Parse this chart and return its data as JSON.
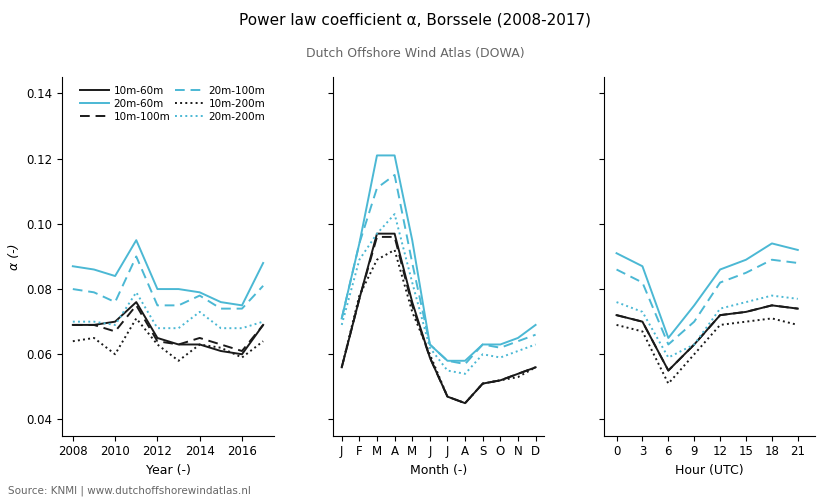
{
  "title": "Power law coefficient α, Borssele (2008-2017)",
  "subtitle": "Dutch Offshore Wind Atlas (DOWA)",
  "ylabel": "α (-)",
  "source": "Source: KNMI | www.dutchoffshorewindatlas.nl",
  "years": [
    2008,
    2009,
    2010,
    2011,
    2012,
    2013,
    2014,
    2015,
    2016,
    2017
  ],
  "year_10m60m": [
    0.069,
    0.069,
    0.07,
    0.076,
    0.065,
    0.063,
    0.063,
    0.061,
    0.06,
    0.069
  ],
  "year_10m100m": [
    0.069,
    0.069,
    0.067,
    0.075,
    0.064,
    0.063,
    0.065,
    0.063,
    0.061,
    0.069
  ],
  "year_10m200m": [
    0.064,
    0.065,
    0.06,
    0.071,
    0.063,
    0.058,
    0.063,
    0.062,
    0.059,
    0.064
  ],
  "year_20m60m": [
    0.087,
    0.086,
    0.084,
    0.095,
    0.08,
    0.08,
    0.079,
    0.076,
    0.075,
    0.088
  ],
  "year_20m100m": [
    0.08,
    0.079,
    0.076,
    0.09,
    0.075,
    0.075,
    0.078,
    0.074,
    0.074,
    0.081
  ],
  "year_20m200m": [
    0.07,
    0.07,
    0.069,
    0.079,
    0.068,
    0.068,
    0.073,
    0.068,
    0.068,
    0.07
  ],
  "month_labels": [
    "J",
    "F",
    "M",
    "A",
    "M",
    "J",
    "J",
    "A",
    "S",
    "O",
    "N",
    "D"
  ],
  "month_10m60m": [
    0.056,
    0.077,
    0.097,
    0.097,
    0.076,
    0.059,
    0.047,
    0.045,
    0.051,
    0.052,
    0.054,
    0.056
  ],
  "month_10m100m": [
    0.056,
    0.077,
    0.096,
    0.096,
    0.075,
    0.059,
    0.047,
    0.045,
    0.051,
    0.052,
    0.054,
    0.056
  ],
  "month_10m200m": [
    0.056,
    0.078,
    0.089,
    0.092,
    0.073,
    0.06,
    0.047,
    0.045,
    0.051,
    0.052,
    0.053,
    0.056
  ],
  "month_20m60m": [
    0.071,
    0.094,
    0.121,
    0.121,
    0.095,
    0.063,
    0.058,
    0.058,
    0.063,
    0.063,
    0.065,
    0.069
  ],
  "month_20m100m": [
    0.071,
    0.094,
    0.111,
    0.115,
    0.088,
    0.063,
    0.058,
    0.057,
    0.063,
    0.062,
    0.064,
    0.066
  ],
  "month_20m200m": [
    0.069,
    0.089,
    0.097,
    0.103,
    0.082,
    0.062,
    0.055,
    0.054,
    0.06,
    0.059,
    0.061,
    0.063
  ],
  "hours": [
    0,
    3,
    6,
    9,
    12,
    15,
    18,
    21
  ],
  "hour_10m60m": [
    0.072,
    0.07,
    0.055,
    0.063,
    0.072,
    0.073,
    0.075,
    0.074
  ],
  "hour_10m100m": [
    0.072,
    0.07,
    0.055,
    0.063,
    0.072,
    0.073,
    0.075,
    0.074
  ],
  "hour_10m200m": [
    0.069,
    0.067,
    0.051,
    0.06,
    0.069,
    0.07,
    0.071,
    0.069
  ],
  "hour_20m60m": [
    0.091,
    0.087,
    0.065,
    0.075,
    0.086,
    0.089,
    0.094,
    0.092
  ],
  "hour_20m100m": [
    0.086,
    0.082,
    0.063,
    0.07,
    0.082,
    0.085,
    0.089,
    0.088
  ],
  "hour_20m200m": [
    0.076,
    0.073,
    0.059,
    0.063,
    0.074,
    0.076,
    0.078,
    0.077
  ],
  "color_black": "#1a1a1a",
  "color_cyan": "#4bb8d4",
  "ylim": [
    0.035,
    0.145
  ]
}
